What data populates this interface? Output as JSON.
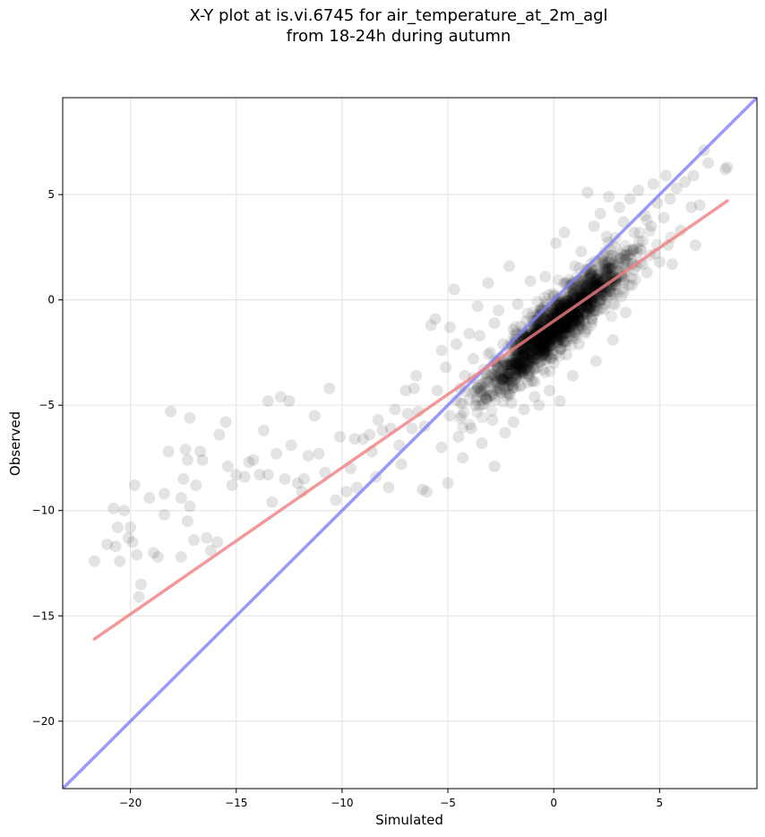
{
  "chart_data": {
    "type": "scatter",
    "title": "X-Y plot at is.vi.6745 for air_temperature_at_2m_agl\nfrom 18-24h during autumn",
    "xlabel": "Simulated",
    "ylabel": "Observed",
    "xlim": [
      -23.2,
      9.6
    ],
    "ylim": [
      -23.2,
      9.6
    ],
    "xticks": [
      -20,
      -15,
      -10,
      -5,
      0,
      5
    ],
    "yticks": [
      -20,
      -15,
      -10,
      -5,
      0,
      5
    ],
    "xtick_labels": [
      "−20",
      "−15",
      "−10",
      "−5",
      "0",
      "5"
    ],
    "ytick_labels": [
      "−20",
      "−15",
      "−10",
      "−5",
      "0",
      "5"
    ],
    "grid": true,
    "legend": "none",
    "point_color": "#000000",
    "points": [
      [
        -21.7,
        -12.4
      ],
      [
        -21.1,
        -11.6
      ],
      [
        -20.8,
        -9.9
      ],
      [
        -20.7,
        -11.7
      ],
      [
        -20.6,
        -10.8
      ],
      [
        -20.5,
        -12.4
      ],
      [
        -20.3,
        -10.0
      ],
      [
        -20.1,
        -11.3
      ],
      [
        -20.0,
        -10.8
      ],
      [
        -19.9,
        -11.5
      ],
      [
        -19.8,
        -8.8
      ],
      [
        -19.7,
        -12.1
      ],
      [
        -19.6,
        -14.1
      ],
      [
        -19.5,
        -13.5
      ],
      [
        -19.1,
        -9.4
      ],
      [
        -18.9,
        -12.0
      ],
      [
        -18.7,
        -12.2
      ],
      [
        -18.4,
        -10.2
      ],
      [
        -18.4,
        -9.2
      ],
      [
        -18.2,
        -7.2
      ],
      [
        -18.1,
        -5.3
      ],
      [
        -17.6,
        -12.2
      ],
      [
        -17.6,
        -9.4
      ],
      [
        -17.5,
        -8.5
      ],
      [
        -17.4,
        -7.1
      ],
      [
        -17.3,
        -7.6
      ],
      [
        -17.3,
        -10.5
      ],
      [
        -17.2,
        -9.8
      ],
      [
        -17.2,
        -5.6
      ],
      [
        -17.0,
        -11.4
      ],
      [
        -16.9,
        -8.8
      ],
      [
        -16.7,
        -7.2
      ],
      [
        -16.6,
        -7.6
      ],
      [
        -16.4,
        -11.3
      ],
      [
        -16.2,
        -11.9
      ],
      [
        -15.9,
        -11.5
      ],
      [
        -15.8,
        -6.4
      ],
      [
        -15.5,
        -5.8
      ],
      [
        -15.4,
        -7.9
      ],
      [
        -15.2,
        -8.8
      ],
      [
        -15.0,
        -8.3
      ],
      [
        -14.6,
        -8.4
      ],
      [
        -14.4,
        -7.7
      ],
      [
        -14.2,
        -7.6
      ],
      [
        -13.9,
        -8.3
      ],
      [
        -13.7,
        -6.2
      ],
      [
        -13.5,
        -8.3
      ],
      [
        -13.5,
        -4.8
      ],
      [
        -13.3,
        -9.6
      ],
      [
        -13.1,
        -7.3
      ],
      [
        -12.9,
        -4.6
      ],
      [
        -12.7,
        -8.5
      ],
      [
        -12.5,
        -4.8
      ],
      [
        -12.4,
        -6.9
      ],
      [
        -12.1,
        -8.7
      ],
      [
        -11.9,
        -9.1
      ],
      [
        -11.8,
        -8.5
      ],
      [
        -11.6,
        -7.4
      ],
      [
        -11.3,
        -5.5
      ],
      [
        -11.1,
        -7.3
      ],
      [
        -10.8,
        -8.2
      ],
      [
        -10.6,
        -4.2
      ],
      [
        -10.3,
        -9.5
      ],
      [
        -10.1,
        -6.5
      ],
      [
        -9.8,
        -9.1
      ],
      [
        -9.6,
        -8.0
      ],
      [
        -9.4,
        -6.6
      ],
      [
        -9.3,
        -8.9
      ],
      [
        -9.0,
        -6.6
      ],
      [
        -8.7,
        -6.4
      ],
      [
        -8.6,
        -7.2
      ],
      [
        -8.4,
        -8.4
      ],
      [
        -8.3,
        -5.7
      ],
      [
        -8.1,
        -6.2
      ],
      [
        -7.8,
        -8.9
      ],
      [
        -7.7,
        -6.1
      ],
      [
        -7.5,
        -5.2
      ],
      [
        -7.3,
        -6.9
      ],
      [
        -7.2,
        -7.8
      ],
      [
        -7.0,
        -4.3
      ],
      [
        -6.9,
        -5.4
      ],
      [
        -6.7,
        -6.1
      ],
      [
        -6.6,
        -4.2
      ],
      [
        -6.5,
        -3.6
      ],
      [
        -6.4,
        -5.3
      ],
      [
        -6.2,
        -9.0
      ],
      [
        -6.1,
        -6.0
      ],
      [
        -6.0,
        -9.1
      ],
      [
        -5.8,
        -1.2
      ],
      [
        -5.6,
        -0.9
      ],
      [
        -5.5,
        -4.3
      ],
      [
        -5.3,
        -2.4
      ],
      [
        -5.3,
        -7.0
      ],
      [
        -5.1,
        -3.2
      ],
      [
        -5.0,
        -8.7
      ],
      [
        -4.9,
        -5.5
      ],
      [
        -4.9,
        -1.3
      ],
      [
        -4.7,
        0.5
      ],
      [
        -4.6,
        -2.1
      ],
      [
        -4.5,
        -6.5
      ],
      [
        -4.4,
        -4.2
      ],
      [
        -4.3,
        -7.5
      ],
      [
        -4.2,
        -3.6
      ],
      [
        -4.0,
        -1.6
      ],
      [
        -3.9,
        -6.1
      ],
      [
        -3.8,
        -2.8
      ],
      [
        -3.7,
        -5.0
      ],
      [
        -3.6,
        -0.3
      ],
      [
        -3.5,
        -1.7
      ],
      [
        -3.4,
        -6.8
      ],
      [
        -3.3,
        -3.3
      ],
      [
        -3.2,
        -4.7
      ],
      [
        -3.1,
        0.8
      ],
      [
        -3.0,
        -2.5
      ],
      [
        -2.9,
        -5.7
      ],
      [
        -2.8,
        -7.9
      ],
      [
        -2.8,
        -1.1
      ],
      [
        -2.7,
        -3.9
      ],
      [
        -2.6,
        -0.5
      ],
      [
        -2.5,
        -4.4
      ],
      [
        -2.4,
        -2.1
      ],
      [
        -2.3,
        -6.3
      ],
      [
        -2.2,
        -3.2
      ],
      [
        -2.1,
        1.6
      ],
      [
        -2.0,
        -4.9
      ],
      [
        -1.9,
        -1.4
      ],
      [
        -1.9,
        -5.8
      ],
      [
        -1.8,
        -3.0
      ],
      [
        -1.7,
        -0.2
      ],
      [
        -1.6,
        -4.1
      ],
      [
        -1.5,
        -2.3
      ],
      [
        -1.4,
        -5.2
      ],
      [
        -1.3,
        -1.0
      ],
      [
        -1.2,
        -3.5
      ],
      [
        -1.1,
        0.9
      ],
      [
        -1.0,
        -2.7
      ],
      [
        -0.9,
        -4.6
      ],
      [
        -0.8,
        -1.6
      ],
      [
        -0.7,
        -5.0
      ],
      [
        -0.6,
        -0.4
      ],
      [
        -0.5,
        -3.3
      ],
      [
        -0.4,
        1.1
      ],
      [
        -0.3,
        -2.2
      ],
      [
        -0.2,
        -4.3
      ],
      [
        -0.1,
        -0.9
      ],
      [
        0.0,
        -3.0
      ],
      [
        0.1,
        2.7
      ],
      [
        0.2,
        -1.7
      ],
      [
        0.3,
        -4.8
      ],
      [
        0.4,
        -0.3
      ],
      [
        0.5,
        3.2
      ],
      [
        0.6,
        -2.6
      ],
      [
        0.7,
        0.7
      ],
      [
        0.8,
        -1.3
      ],
      [
        0.9,
        -3.6
      ],
      [
        1.0,
        1.6
      ],
      [
        1.1,
        -0.6
      ],
      [
        1.2,
        -2.1
      ],
      [
        1.3,
        2.3
      ],
      [
        1.4,
        0.2
      ],
      [
        1.5,
        -1.5
      ],
      [
        1.6,
        5.1
      ],
      [
        1.7,
        1.2
      ],
      [
        1.8,
        -0.9
      ],
      [
        1.9,
        3.5
      ],
      [
        2.0,
        -2.9
      ],
      [
        2.1,
        0.7
      ],
      [
        2.2,
        4.1
      ],
      [
        2.3,
        1.9
      ],
      [
        2.4,
        -0.2
      ],
      [
        2.5,
        3.0
      ],
      [
        2.6,
        4.9
      ],
      [
        2.7,
        1.5
      ],
      [
        2.8,
        -1.9
      ],
      [
        2.9,
        2.5
      ],
      [
        3.0,
        0.3
      ],
      [
        3.1,
        4.4
      ],
      [
        3.2,
        1.1
      ],
      [
        3.3,
        3.7
      ],
      [
        3.4,
        -0.6
      ],
      [
        3.5,
        2.1
      ],
      [
        3.6,
        4.8
      ],
      [
        3.7,
        0.7
      ],
      [
        3.8,
        3.2
      ],
      [
        3.9,
        1.6
      ],
      [
        4.0,
        5.2
      ],
      [
        4.2,
        2.8
      ],
      [
        4.3,
        4.0
      ],
      [
        4.4,
        1.3
      ],
      [
        4.6,
        3.5
      ],
      [
        4.7,
        5.5
      ],
      [
        4.8,
        2.2
      ],
      [
        4.9,
        4.6
      ],
      [
        5.0,
        1.8
      ],
      [
        5.2,
        3.9
      ],
      [
        5.3,
        5.9
      ],
      [
        5.4,
        2.6
      ],
      [
        5.5,
        4.8
      ],
      [
        5.6,
        1.7
      ],
      [
        5.8,
        5.3
      ],
      [
        6.0,
        3.3
      ],
      [
        6.2,
        5.6
      ],
      [
        6.5,
        4.4
      ],
      [
        6.7,
        2.6
      ],
      [
        6.9,
        4.5
      ],
      [
        7.1,
        7.1
      ],
      [
        7.3,
        6.5
      ],
      [
        8.1,
        6.2
      ],
      [
        8.2,
        6.3
      ],
      [
        6.6,
        5.9
      ]
    ],
    "regression_line": {
      "color": "#f08080",
      "x": [
        -21.7,
        8.2
      ],
      "y": [
        -16.1,
        4.7
      ]
    },
    "identity_line": {
      "color": "#8080f8",
      "x": [
        -23.2,
        9.6
      ],
      "y": [
        -23.2,
        9.6
      ]
    }
  }
}
